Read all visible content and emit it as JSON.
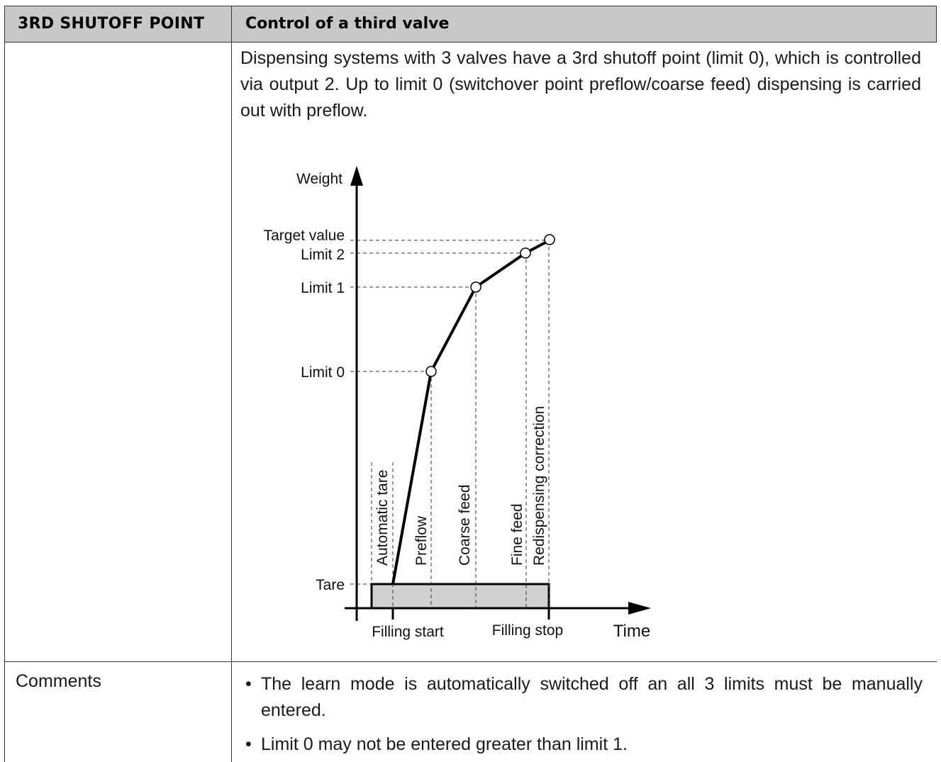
{
  "header": {
    "left": "3RD SHUTOFF POINT",
    "right": "Control of a third valve"
  },
  "description": "Dispensing systems with 3 valves have a 3rd shutoff point (limit 0), which is controlled via output 2. Up to limit 0 (switchover point preflow/coarse feed) dispensing is carried out with preflow.",
  "diagram": {
    "y_axis_label": "Weight",
    "x_axis_label": "Time",
    "y_levels": [
      "Target value",
      "Limit 2",
      "Limit 1",
      "Limit 0",
      "Tare"
    ],
    "x_markers": [
      "Filling start",
      "Filling stop"
    ],
    "phases": [
      "Automatic tare",
      "Preflow",
      "Coarse feed",
      "Fine feed",
      "Redispensing correction"
    ]
  },
  "comments": {
    "label": "Comments",
    "items": [
      "The learn mode is automatically switched off an all 3 limits must be manually entered.",
      "Limit 0 may not be entered greater than limit 1."
    ]
  }
}
